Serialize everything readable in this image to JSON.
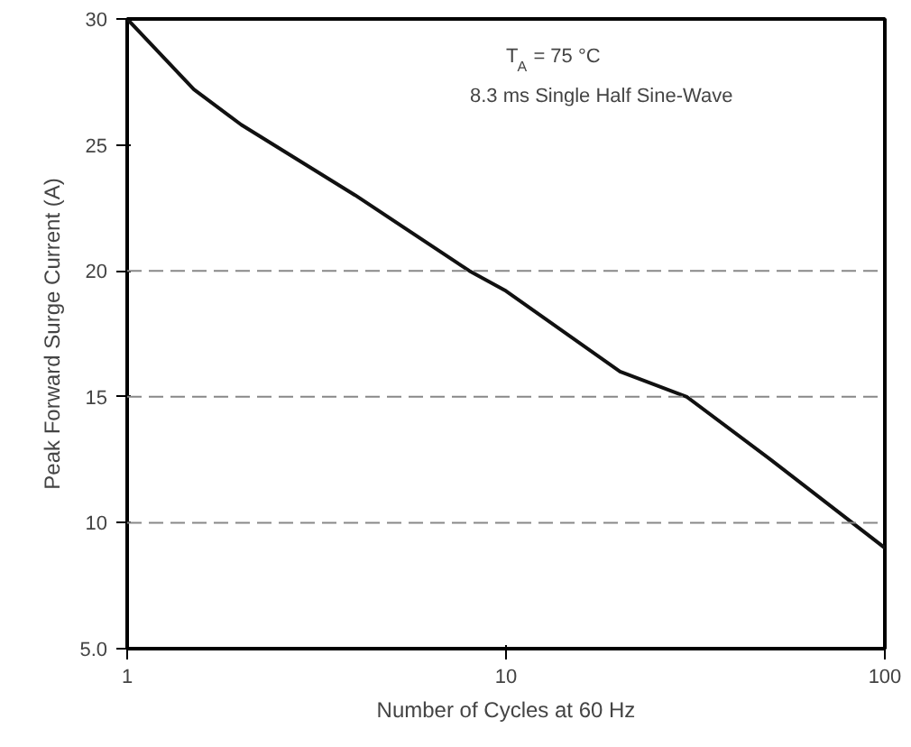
{
  "chart_data": {
    "type": "line",
    "xlabel": "Number of Cycles at 60 Hz",
    "ylabel": "Peak Forward Surge Current (A)",
    "annotations": [
      "T$_{A}$ = 75 °C",
      "8.3 ms Single Half Sine-Wave"
    ],
    "x": [
      1,
      1.5,
      2,
      4,
      8,
      10,
      20,
      30,
      50,
      100
    ],
    "series": [
      {
        "color": "#111111",
        "values": [
          30,
          27.2,
          25.8,
          23,
          20,
          19.2,
          16,
          15,
          12.5,
          9
        ]
      }
    ],
    "log": "x",
    "xlim": [
      1,
      100
    ],
    "xticks": [
      1,
      10,
      100
    ],
    "ylim": [
      5,
      30
    ],
    "yticks": [
      {
        "value": 5,
        "label": "5.0"
      },
      10,
      15,
      20,
      25,
      30
    ],
    "grid": false,
    "line_style": "solid",
    "marker": "none",
    "ref_lines": [
      {
        "axis": "y",
        "value": 10,
        "color": "#888888",
        "line_style": "dashed"
      },
      {
        "axis": "y",
        "value": 15,
        "color": "#888888",
        "line_style": "dashed"
      },
      {
        "axis": "y",
        "value": 20,
        "color": "#888888",
        "line_style": "dashed"
      }
    ]
  }
}
